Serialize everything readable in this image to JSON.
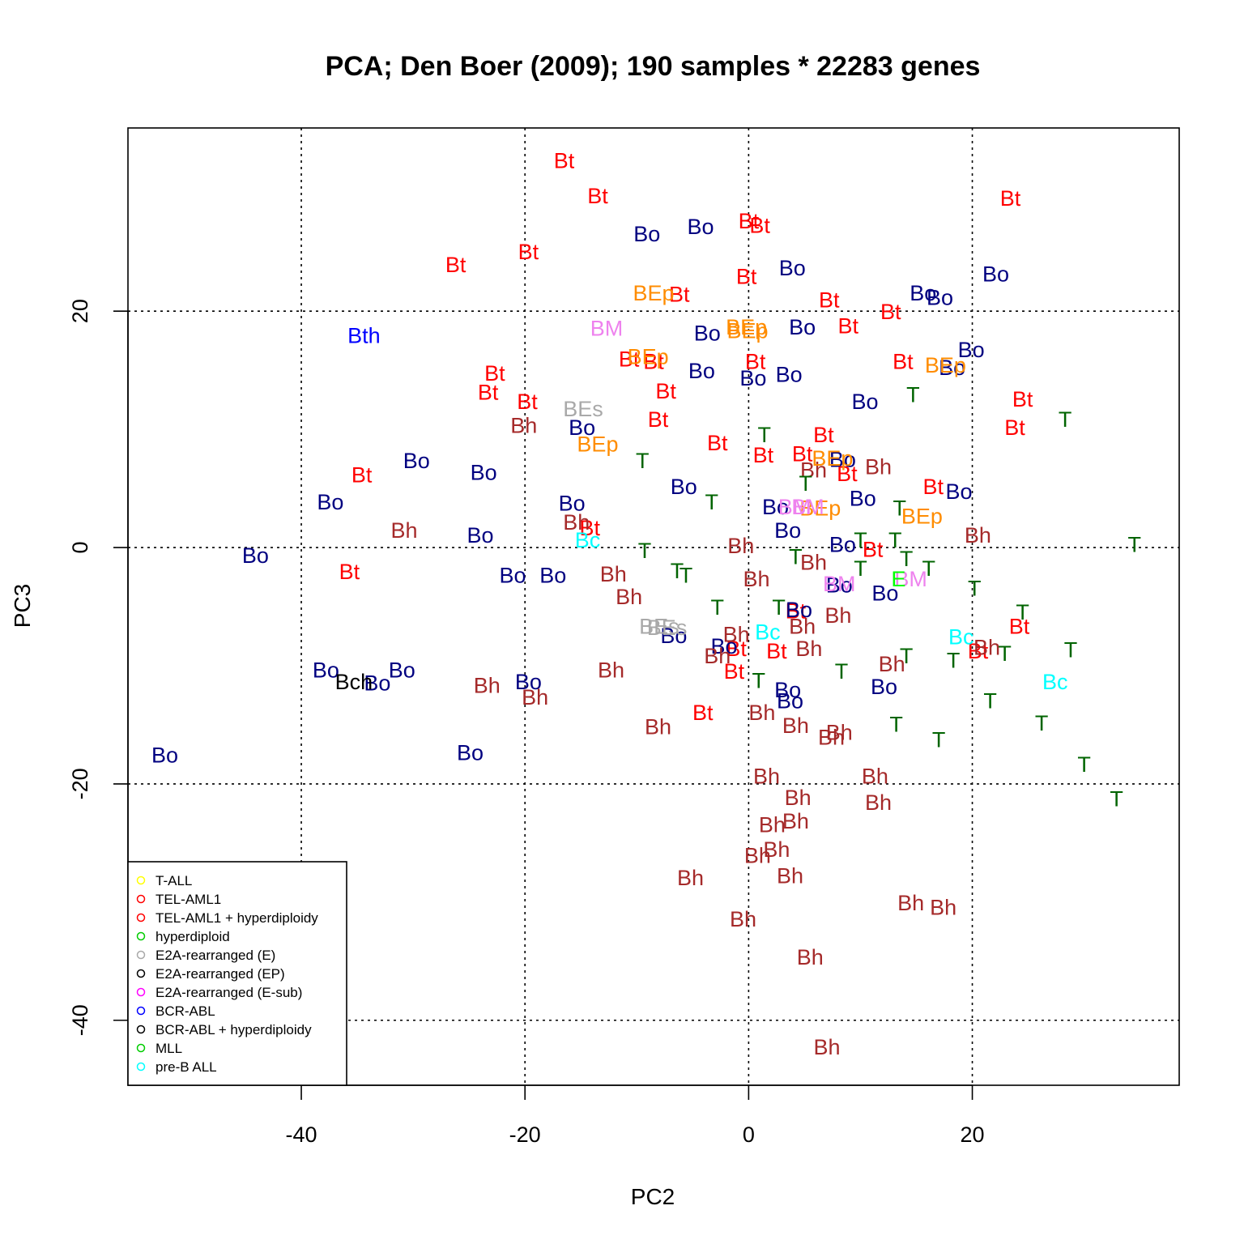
{
  "chart_data": {
    "type": "scatter",
    "title": "PCA; Den Boer (2009);  190 samples * 22283 genes",
    "xlabel": "PC2",
    "ylabel": "PC3",
    "xlim": [
      -55.5,
      38.5
    ],
    "ylim": [
      -45.5,
      35.5
    ],
    "xticks": [
      -40,
      -20,
      0,
      20
    ],
    "yticks": [
      -40,
      -20,
      0,
      20
    ],
    "grid": "dotted at ticks",
    "legend_position": "bottom-left",
    "colors": {
      "Bt": "#ff0000",
      "Bo": "#000080",
      "Bh": "#a52a2a",
      "T": "#006400",
      "BEp": "#ff8c00",
      "BM": "#ee82ee",
      "BEs": "#a9a9a9",
      "Bc": "#00ffff",
      "Bth": "#0000ff",
      "Bch": "#000000",
      "E": "#00ff00"
    },
    "legend": [
      {
        "label": "T-ALL",
        "color": "#ffff00"
      },
      {
        "label": "TEL-AML1",
        "color": "#ff0000"
      },
      {
        "label": "TEL-AML1 + hyperdiploidy",
        "color": "#ff0000"
      },
      {
        "label": "hyperdiploid",
        "color": "#00cd00"
      },
      {
        "label": "E2A-rearranged (E)",
        "color": "#a9a9a9"
      },
      {
        "label": "E2A-rearranged (EP)",
        "color": "#000000"
      },
      {
        "label": "E2A-rearranged (E-sub)",
        "color": "#ff00ff"
      },
      {
        "label": "BCR-ABL",
        "color": "#0000ff"
      },
      {
        "label": "BCR-ABL + hyperdiploidy",
        "color": "#000000"
      },
      {
        "label": "MLL",
        "color": "#00cd00"
      },
      {
        "label": "pre-B ALL",
        "color": "#00ffff"
      }
    ],
    "points": [
      {
        "label": "Bt",
        "x": -16.5,
        "y": 32.8
      },
      {
        "label": "Bt",
        "x": -13.5,
        "y": 29.8
      },
      {
        "label": "Bt",
        "x": -19.7,
        "y": 25.1
      },
      {
        "label": "Bt",
        "x": -26.2,
        "y": 24.0
      },
      {
        "label": "Bt",
        "x": 0.0,
        "y": 27.7
      },
      {
        "label": "Bt",
        "x": 1.0,
        "y": 27.3
      },
      {
        "label": "Bt",
        "x": -0.2,
        "y": 23.0
      },
      {
        "label": "Bt",
        "x": -6.2,
        "y": 21.5
      },
      {
        "label": "Bt",
        "x": 7.2,
        "y": 21.0
      },
      {
        "label": "Bt",
        "x": 12.7,
        "y": 20.0
      },
      {
        "label": "Bt",
        "x": 8.9,
        "y": 18.8
      },
      {
        "label": "Bt",
        "x": 23.4,
        "y": 29.6
      },
      {
        "label": "Bt",
        "x": 13.8,
        "y": 15.8
      },
      {
        "label": "Bt",
        "x": 0.6,
        "y": 15.8
      },
      {
        "label": "Bt",
        "x": -10.7,
        "y": 16.0
      },
      {
        "label": "Bt",
        "x": -8.5,
        "y": 15.8
      },
      {
        "label": "Bt",
        "x": -22.7,
        "y": 14.8
      },
      {
        "label": "Bt",
        "x": -23.3,
        "y": 13.2
      },
      {
        "label": "Bt",
        "x": -19.8,
        "y": 12.4
      },
      {
        "label": "Bt",
        "x": -7.4,
        "y": 13.3
      },
      {
        "label": "Bt",
        "x": -8.1,
        "y": 10.9
      },
      {
        "label": "Bt",
        "x": -2.8,
        "y": 8.9
      },
      {
        "label": "Bt",
        "x": 1.3,
        "y": 7.9
      },
      {
        "label": "Bt",
        "x": 6.7,
        "y": 9.6
      },
      {
        "label": "Bt",
        "x": 4.8,
        "y": 8.0
      },
      {
        "label": "Bt",
        "x": 24.5,
        "y": 12.6
      },
      {
        "label": "Bt",
        "x": 23.8,
        "y": 10.2
      },
      {
        "label": "Bt",
        "x": 16.5,
        "y": 5.2
      },
      {
        "label": "Bt",
        "x": 8.8,
        "y": 6.3
      },
      {
        "label": "Bt",
        "x": -34.6,
        "y": 6.2
      },
      {
        "label": "Bt",
        "x": -14.2,
        "y": 1.7
      },
      {
        "label": "Bt",
        "x": 11.1,
        "y": -0.1
      },
      {
        "label": "Bt",
        "x": -35.7,
        "y": -2.0
      },
      {
        "label": "Bt",
        "x": 4.2,
        "y": -5.3
      },
      {
        "label": "Bt",
        "x": 2.5,
        "y": -8.7
      },
      {
        "label": "Bt",
        "x": -1.1,
        "y": -8.5
      },
      {
        "label": "Bt",
        "x": -1.3,
        "y": -10.4
      },
      {
        "label": "Bt",
        "x": -4.1,
        "y": -13.9
      },
      {
        "label": "Bt",
        "x": 24.2,
        "y": -6.6
      },
      {
        "label": "Bt",
        "x": 20.5,
        "y": -8.7
      },
      {
        "label": "Bo",
        "x": -9.1,
        "y": 26.6
      },
      {
        "label": "Bo",
        "x": -4.3,
        "y": 27.2
      },
      {
        "label": "Bo",
        "x": 3.9,
        "y": 23.7
      },
      {
        "label": "Bo",
        "x": 15.6,
        "y": 21.6
      },
      {
        "label": "Bo",
        "x": 17.1,
        "y": 21.2
      },
      {
        "label": "Bo",
        "x": 22.1,
        "y": 23.2
      },
      {
        "label": "Bo",
        "x": -3.7,
        "y": 18.2
      },
      {
        "label": "Bo",
        "x": 4.8,
        "y": 18.7
      },
      {
        "label": "Bo",
        "x": 19.9,
        "y": 16.8
      },
      {
        "label": "Bo",
        "x": 18.2,
        "y": 15.3
      },
      {
        "label": "Bo",
        "x": -4.2,
        "y": 15.0
      },
      {
        "label": "Bo",
        "x": 0.4,
        "y": 14.4
      },
      {
        "label": "Bo",
        "x": 3.6,
        "y": 14.7
      },
      {
        "label": "Bo",
        "x": 10.4,
        "y": 12.4
      },
      {
        "label": "Bo",
        "x": -14.9,
        "y": 10.2
      },
      {
        "label": "Bo",
        "x": -29.7,
        "y": 7.4
      },
      {
        "label": "Bo",
        "x": -23.7,
        "y": 6.4
      },
      {
        "label": "Bo",
        "x": -5.8,
        "y": 5.2
      },
      {
        "label": "Bo",
        "x": 8.4,
        "y": 7.5
      },
      {
        "label": "Bo",
        "x": 10.2,
        "y": 4.2
      },
      {
        "label": "Bo",
        "x": 18.8,
        "y": 4.8
      },
      {
        "label": "Bo",
        "x": -37.4,
        "y": 3.9
      },
      {
        "label": "Bo",
        "x": -15.8,
        "y": 3.8
      },
      {
        "label": "Bo",
        "x": 2.4,
        "y": 3.5
      },
      {
        "label": "Bo",
        "x": 3.5,
        "y": 1.5
      },
      {
        "label": "Bo",
        "x": -24.0,
        "y": 1.1
      },
      {
        "label": "Bo",
        "x": 8.4,
        "y": 0.3
      },
      {
        "label": "Bo",
        "x": -44.1,
        "y": -0.6
      },
      {
        "label": "Bo",
        "x": -21.1,
        "y": -2.3
      },
      {
        "label": "Bo",
        "x": -17.5,
        "y": -2.3
      },
      {
        "label": "Bo",
        "x": 8.1,
        "y": -3.1
      },
      {
        "label": "Bo",
        "x": 12.2,
        "y": -3.8
      },
      {
        "label": "Bo",
        "x": 4.5,
        "y": -5.2
      },
      {
        "label": "Bo",
        "x": -6.7,
        "y": -7.4
      },
      {
        "label": "Bo",
        "x": -2.2,
        "y": -8.3
      },
      {
        "label": "Bo",
        "x": -37.8,
        "y": -10.3
      },
      {
        "label": "Bo",
        "x": -31.0,
        "y": -10.3
      },
      {
        "label": "Bo",
        "x": -33.2,
        "y": -11.4
      },
      {
        "label": "Bo",
        "x": -19.7,
        "y": -11.3
      },
      {
        "label": "Bo",
        "x": 3.5,
        "y": -12.0
      },
      {
        "label": "Bo",
        "x": 3.7,
        "y": -12.9
      },
      {
        "label": "Bo",
        "x": 12.1,
        "y": -11.7
      },
      {
        "label": "Bo",
        "x": -52.2,
        "y": -17.5
      },
      {
        "label": "Bo",
        "x": -24.9,
        "y": -17.3
      },
      {
        "label": "Bh",
        "x": -20.1,
        "y": 10.4
      },
      {
        "label": "Bh",
        "x": 5.8,
        "y": 6.6
      },
      {
        "label": "Bh",
        "x": 11.6,
        "y": 6.9
      },
      {
        "label": "Bh",
        "x": 20.5,
        "y": 1.1
      },
      {
        "label": "Bh",
        "x": -30.8,
        "y": 1.5
      },
      {
        "label": "Bh",
        "x": -15.4,
        "y": 2.2
      },
      {
        "label": "Bh",
        "x": -0.7,
        "y": 0.2
      },
      {
        "label": "Bh",
        "x": 5.8,
        "y": -1.2
      },
      {
        "label": "Bh",
        "x": -12.1,
        "y": -2.2
      },
      {
        "label": "Bh",
        "x": -10.7,
        "y": -4.1
      },
      {
        "label": "Bh",
        "x": 0.7,
        "y": -2.6
      },
      {
        "label": "Bh",
        "x": 8.0,
        "y": -5.7
      },
      {
        "label": "Bh",
        "x": 4.8,
        "y": -6.6
      },
      {
        "label": "Bh",
        "x": -1.1,
        "y": -7.3
      },
      {
        "label": "Bh",
        "x": 5.4,
        "y": -8.5
      },
      {
        "label": "Bh",
        "x": -2.8,
        "y": -9.1
      },
      {
        "label": "Bh",
        "x": 12.8,
        "y": -9.8
      },
      {
        "label": "Bh",
        "x": 21.3,
        "y": -8.4
      },
      {
        "label": "Bh",
        "x": -12.3,
        "y": -10.3
      },
      {
        "label": "Bh",
        "x": -23.4,
        "y": -11.6
      },
      {
        "label": "Bh",
        "x": -19.1,
        "y": -12.6
      },
      {
        "label": "Bh",
        "x": 1.2,
        "y": -13.9
      },
      {
        "label": "Bh",
        "x": 4.2,
        "y": -15.0
      },
      {
        "label": "Bh",
        "x": -8.1,
        "y": -15.1
      },
      {
        "label": "Bh",
        "x": 8.1,
        "y": -15.6
      },
      {
        "label": "Bh",
        "x": 7.4,
        "y": -16.0
      },
      {
        "label": "Bh",
        "x": 1.6,
        "y": -19.3
      },
      {
        "label": "Bh",
        "x": 11.3,
        "y": -19.3
      },
      {
        "label": "Bh",
        "x": 4.4,
        "y": -21.1
      },
      {
        "label": "Bh",
        "x": 11.6,
        "y": -21.5
      },
      {
        "label": "Bh",
        "x": 2.1,
        "y": -23.4
      },
      {
        "label": "Bh",
        "x": 4.2,
        "y": -23.1
      },
      {
        "label": "Bh",
        "x": 2.5,
        "y": -25.5
      },
      {
        "label": "Bh",
        "x": 0.8,
        "y": -26.0
      },
      {
        "label": "Bh",
        "x": 3.7,
        "y": -27.7
      },
      {
        "label": "Bh",
        "x": -5.2,
        "y": -27.9
      },
      {
        "label": "Bh",
        "x": 14.5,
        "y": -30.0
      },
      {
        "label": "Bh",
        "x": 17.4,
        "y": -30.4
      },
      {
        "label": "Bh",
        "x": -0.5,
        "y": -31.4
      },
      {
        "label": "Bh",
        "x": 5.5,
        "y": -34.6
      },
      {
        "label": "Bh",
        "x": 7.0,
        "y": -42.2
      },
      {
        "label": "T",
        "x": 14.7,
        "y": 13.0
      },
      {
        "label": "T",
        "x": 28.3,
        "y": 10.9
      },
      {
        "label": "T",
        "x": 1.4,
        "y": 9.6
      },
      {
        "label": "T",
        "x": -9.5,
        "y": 7.4
      },
      {
        "label": "T",
        "x": 5.1,
        "y": 5.5
      },
      {
        "label": "T",
        "x": -3.3,
        "y": 3.9
      },
      {
        "label": "T",
        "x": 13.5,
        "y": 3.4
      },
      {
        "label": "T",
        "x": 10.0,
        "y": 0.7
      },
      {
        "label": "T",
        "x": 13.1,
        "y": 0.7
      },
      {
        "label": "T",
        "x": 34.5,
        "y": 0.3
      },
      {
        "label": "T",
        "x": -9.3,
        "y": -0.2
      },
      {
        "label": "T",
        "x": 4.2,
        "y": -0.7
      },
      {
        "label": "T",
        "x": 14.1,
        "y": -0.9
      },
      {
        "label": "T",
        "x": 10.0,
        "y": -1.7
      },
      {
        "label": "T",
        "x": 16.1,
        "y": -1.7
      },
      {
        "label": "T",
        "x": -6.4,
        "y": -1.9
      },
      {
        "label": "T",
        "x": -5.6,
        "y": -2.3
      },
      {
        "label": "T",
        "x": 20.2,
        "y": -3.4
      },
      {
        "label": "T",
        "x": -2.8,
        "y": -5.0
      },
      {
        "label": "T",
        "x": 2.7,
        "y": -5.0
      },
      {
        "label": "T",
        "x": 24.5,
        "y": -5.4
      },
      {
        "label": "T",
        "x": 14.1,
        "y": -9.1
      },
      {
        "label": "T",
        "x": 18.3,
        "y": -9.5
      },
      {
        "label": "T",
        "x": 22.9,
        "y": -8.9
      },
      {
        "label": "T",
        "x": 28.8,
        "y": -8.6
      },
      {
        "label": "T",
        "x": 8.3,
        "y": -10.4
      },
      {
        "label": "T",
        "x": 0.9,
        "y": -11.2
      },
      {
        "label": "T",
        "x": 21.6,
        "y": -12.9
      },
      {
        "label": "T",
        "x": 26.2,
        "y": -14.8
      },
      {
        "label": "T",
        "x": 13.2,
        "y": -14.9
      },
      {
        "label": "T",
        "x": 17.0,
        "y": -16.2
      },
      {
        "label": "T",
        "x": 30.0,
        "y": -18.3
      },
      {
        "label": "T",
        "x": 32.9,
        "y": -21.2
      },
      {
        "label": "BEp",
        "x": -8.5,
        "y": 21.6
      },
      {
        "label": "BEp",
        "x": -0.2,
        "y": 18.7
      },
      {
        "label": "BEp",
        "x": -0.1,
        "y": 18.4
      },
      {
        "label": "BEp",
        "x": -9.0,
        "y": 16.2
      },
      {
        "label": "BEp",
        "x": 17.6,
        "y": 15.5
      },
      {
        "label": "BEp",
        "x": -13.5,
        "y": 8.8
      },
      {
        "label": "BEp",
        "x": 7.5,
        "y": 7.6
      },
      {
        "label": "BEp",
        "x": 6.4,
        "y": 3.4
      },
      {
        "label": "BEp",
        "x": 15.5,
        "y": 2.7
      },
      {
        "label": "BM",
        "x": -12.7,
        "y": 18.6
      },
      {
        "label": "BM",
        "x": 4.1,
        "y": 3.5
      },
      {
        "label": "BM",
        "x": 5.3,
        "y": 3.5
      },
      {
        "label": "BM",
        "x": 8.1,
        "y": -3.0
      },
      {
        "label": "BM",
        "x": 14.5,
        "y": -2.6
      },
      {
        "label": "BEs",
        "x": -14.8,
        "y": 11.8
      },
      {
        "label": "BEs",
        "x": -8.0,
        "y": -6.6
      },
      {
        "label": "BEs",
        "x": -7.3,
        "y": -6.7
      },
      {
        "label": "Bc",
        "x": -14.4,
        "y": 0.7
      },
      {
        "label": "Bc",
        "x": 1.7,
        "y": -7.1
      },
      {
        "label": "Bc",
        "x": 19.0,
        "y": -7.5
      },
      {
        "label": "Bc",
        "x": 27.4,
        "y": -11.3
      },
      {
        "label": "Bth",
        "x": -34.4,
        "y": 18.0
      },
      {
        "label": "Bch",
        "x": -35.3,
        "y": -11.3
      },
      {
        "label": "E",
        "x": 13.4,
        "y": -2.6
      }
    ]
  }
}
